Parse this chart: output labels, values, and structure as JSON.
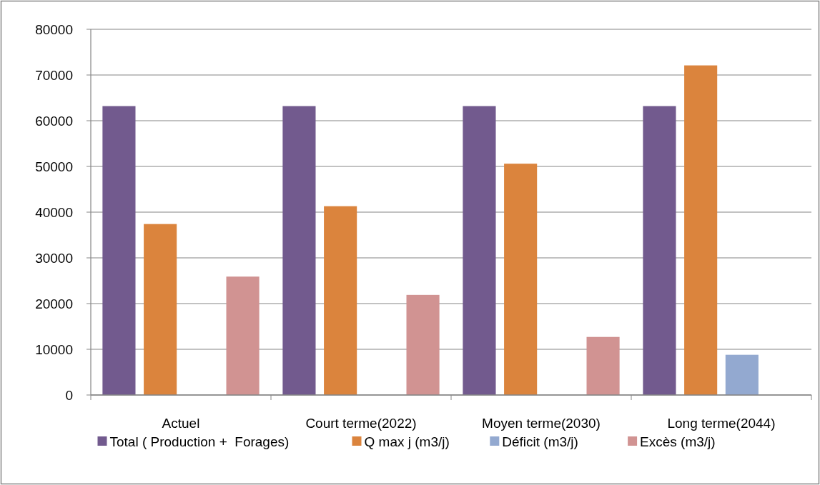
{
  "chart_data": {
    "type": "bar",
    "categories": [
      "Actuel",
      "Court terme(2022)",
      "Moyen terme(2030)",
      "Long terme(2044)"
    ],
    "series": [
      {
        "name": "Total ( Production +  Forages)",
        "color": "#725a8e",
        "values": [
          63200,
          63200,
          63200,
          63200
        ]
      },
      {
        "name": "Q max j (m3/j)",
        "color": "#db843d",
        "values": [
          37400,
          41300,
          50600,
          72100
        ]
      },
      {
        "name": "Déficit (m3/j)",
        "color": "#93a9d0",
        "values": [
          null,
          null,
          null,
          8800
        ]
      },
      {
        "name": "Excès (m3/j)",
        "color": "#d19392",
        "values": [
          25900,
          21900,
          12700,
          null
        ]
      }
    ],
    "ylim": [
      0,
      80000
    ],
    "yticks": [
      0,
      10000,
      20000,
      30000,
      40000,
      50000,
      60000,
      70000,
      80000
    ],
    "grid": "y",
    "legend": "bottom"
  }
}
